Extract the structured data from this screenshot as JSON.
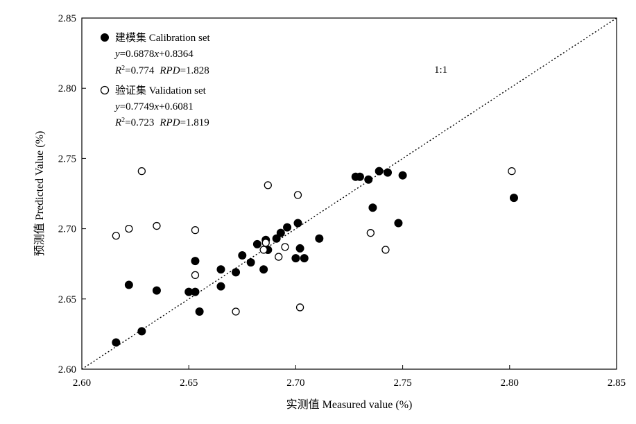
{
  "chart_data": {
    "type": "scatter",
    "title": "",
    "xlabel": "实测值 Measured value (%)",
    "ylabel": "预测值 Predicted Value (%)",
    "xlim": [
      2.6,
      2.85
    ],
    "ylim": [
      2.6,
      2.85
    ],
    "xticks": [
      "2.60",
      "2.65",
      "2.70",
      "2.75",
      "2.80",
      "2.85"
    ],
    "yticks": [
      "2.60",
      "2.65",
      "2.70",
      "2.75",
      "2.80",
      "2.85"
    ],
    "reference_line": {
      "label": "1:1",
      "slope": 1,
      "intercept": 0,
      "style": "dotted"
    },
    "legend_position": "top-left",
    "series": [
      {
        "name": "建模集 Calibration set",
        "marker": "filled-circle",
        "equation": {
          "y": "y",
          "text": "=0.6878",
          "x": "x",
          "rest": "+0.8364"
        },
        "stats": {
          "r": "R",
          "sup": "2",
          "r2": "=0.774",
          "rpd": "RPD",
          "rpdval": "=1.828"
        },
        "points": [
          [
            2.616,
            2.619
          ],
          [
            2.622,
            2.66
          ],
          [
            2.628,
            2.627
          ],
          [
            2.635,
            2.656
          ],
          [
            2.65,
            2.655
          ],
          [
            2.653,
            2.677
          ],
          [
            2.653,
            2.655
          ],
          [
            2.655,
            2.641
          ],
          [
            2.665,
            2.671
          ],
          [
            2.665,
            2.659
          ],
          [
            2.672,
            2.669
          ],
          [
            2.675,
            2.681
          ],
          [
            2.679,
            2.676
          ],
          [
            2.682,
            2.689
          ],
          [
            2.685,
            2.671
          ],
          [
            2.686,
            2.692
          ],
          [
            2.687,
            2.685
          ],
          [
            2.691,
            2.693
          ],
          [
            2.693,
            2.697
          ],
          [
            2.696,
            2.701
          ],
          [
            2.7,
            2.679
          ],
          [
            2.701,
            2.704
          ],
          [
            2.702,
            2.686
          ],
          [
            2.704,
            2.679
          ],
          [
            2.711,
            2.693
          ],
          [
            2.728,
            2.737
          ],
          [
            2.73,
            2.737
          ],
          [
            2.734,
            2.735
          ],
          [
            2.736,
            2.715
          ],
          [
            2.739,
            2.741
          ],
          [
            2.743,
            2.74
          ],
          [
            2.748,
            2.704
          ],
          [
            2.75,
            2.738
          ],
          [
            2.802,
            2.722
          ]
        ]
      },
      {
        "name": "验证集 Validation set",
        "marker": "open-circle",
        "equation": {
          "y": "y",
          "text": "=0.7749",
          "x": "x",
          "rest": "+0.6081"
        },
        "stats": {
          "r": "R",
          "sup": "2",
          "r2": "=0.723",
          "rpd": "RPD",
          "rpdval": "=1.819"
        },
        "points": [
          [
            2.616,
            2.695
          ],
          [
            2.622,
            2.7
          ],
          [
            2.628,
            2.741
          ],
          [
            2.635,
            2.702
          ],
          [
            2.653,
            2.699
          ],
          [
            2.653,
            2.667
          ],
          [
            2.672,
            2.641
          ],
          [
            2.685,
            2.685
          ],
          [
            2.686,
            2.69
          ],
          [
            2.687,
            2.731
          ],
          [
            2.692,
            2.68
          ],
          [
            2.695,
            2.687
          ],
          [
            2.701,
            2.724
          ],
          [
            2.702,
            2.644
          ],
          [
            2.735,
            2.697
          ],
          [
            2.742,
            2.685
          ],
          [
            2.801,
            2.741
          ]
        ]
      }
    ]
  }
}
